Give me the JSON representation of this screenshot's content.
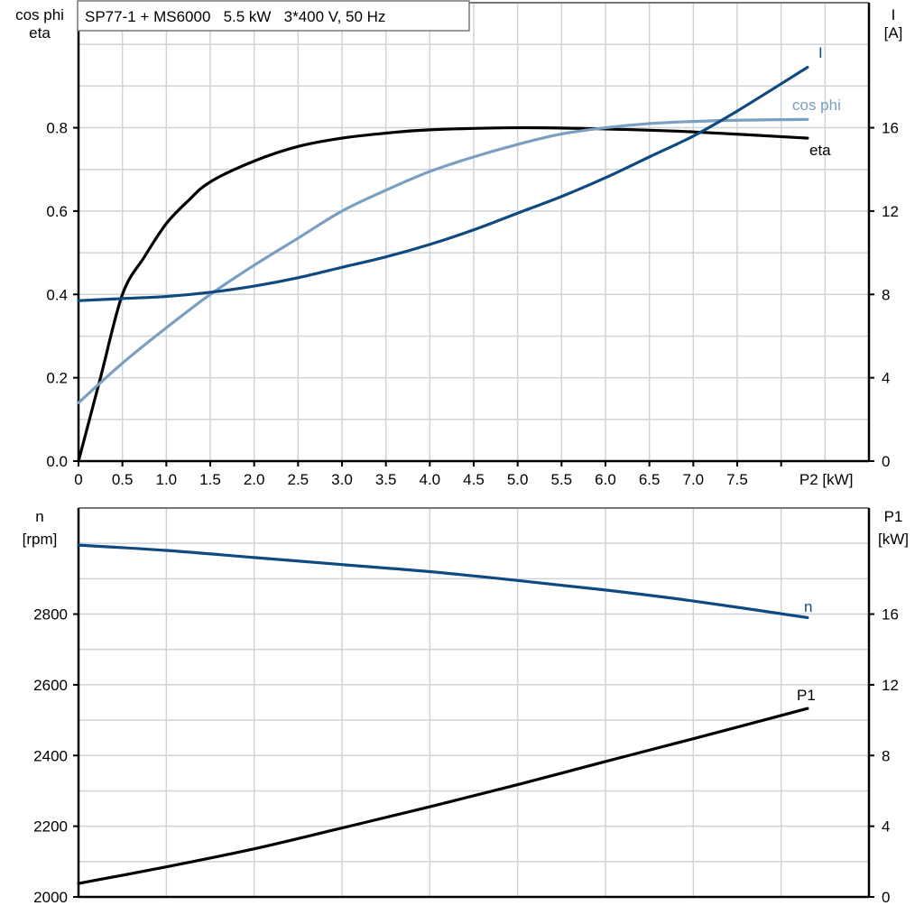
{
  "chart_data": [
    {
      "type": "line",
      "title": "SP77-1 + MS6000   5.5 kW   3*400 V, 50 Hz",
      "xlabel": "P2 [kW]",
      "ylabel_left": [
        "cos phi",
        "eta"
      ],
      "ylabel_right": [
        "I",
        "[A]"
      ],
      "xlim": [
        0,
        9
      ],
      "ylim_left": [
        0,
        1.1
      ],
      "ylim_right": [
        0,
        22
      ],
      "x_ticks": [
        "0",
        "0.5",
        "1.0",
        "1.5",
        "2.0",
        "2.5",
        "3.0",
        "3.5",
        "4.0",
        "4.5",
        "5.0",
        "5.5",
        "6.0",
        "6.5",
        "7.0",
        "7.5"
      ],
      "x_tick_values": [
        0,
        0.5,
        1,
        1.5,
        2,
        2.5,
        3,
        3.5,
        4,
        4.5,
        5,
        5.5,
        6,
        6.5,
        7,
        7.5
      ],
      "y_ticks_left": [
        "0.0",
        "0.2",
        "0.4",
        "0.6",
        "0.8"
      ],
      "y_tick_values_left": [
        0,
        0.2,
        0.4,
        0.6,
        0.8
      ],
      "y_ticks_right": [
        "0",
        "4",
        "8",
        "12",
        "16"
      ],
      "y_tick_values_right": [
        0,
        4,
        8,
        12,
        16
      ],
      "grid": true,
      "series": [
        {
          "name": "eta",
          "axis": "left",
          "color": "#000000",
          "x": [
            0,
            0.25,
            0.5,
            0.75,
            1,
            1.25,
            1.5,
            2,
            2.5,
            3,
            3.5,
            4,
            5,
            6,
            7,
            8.3
          ],
          "y": [
            0,
            0.2,
            0.4,
            0.49,
            0.57,
            0.625,
            0.67,
            0.72,
            0.755,
            0.775,
            0.787,
            0.795,
            0.8,
            0.797,
            0.79,
            0.775
          ]
        },
        {
          "name": "cos phi",
          "axis": "left",
          "color": "#7a9fc0",
          "x": [
            0,
            0.5,
            1,
            1.5,
            2,
            2.5,
            3,
            3.5,
            4,
            4.5,
            5,
            5.5,
            6,
            6.5,
            7,
            7.5,
            8.3
          ],
          "y": [
            0.14,
            0.235,
            0.32,
            0.4,
            0.47,
            0.535,
            0.6,
            0.65,
            0.695,
            0.73,
            0.76,
            0.785,
            0.8,
            0.81,
            0.815,
            0.818,
            0.82
          ]
        },
        {
          "name": "I",
          "axis": "right",
          "color": "#0e4a80",
          "x": [
            0,
            0.5,
            1,
            1.5,
            2,
            2.5,
            3,
            3.5,
            4,
            4.5,
            5,
            5.5,
            6,
            6.5,
            7,
            7.5,
            8.3
          ],
          "y": [
            7.7,
            7.8,
            7.9,
            8.1,
            8.4,
            8.8,
            9.3,
            9.8,
            10.4,
            11.1,
            11.9,
            12.7,
            13.6,
            14.6,
            15.6,
            16.8,
            18.9
          ]
        }
      ]
    },
    {
      "type": "line",
      "xlim": [
        0,
        9
      ],
      "ylabel_left": [
        "n",
        "[rpm]"
      ],
      "ylabel_right": [
        "P1",
        "[kW]"
      ],
      "ylim_left": [
        2000,
        3100
      ],
      "ylim_right": [
        0,
        22
      ],
      "y_ticks_left": [
        "2000",
        "2200",
        "2400",
        "2600",
        "2800"
      ],
      "y_tick_values_left": [
        2000,
        2200,
        2400,
        2600,
        2800
      ],
      "y_ticks_right": [
        "0",
        "4",
        "8",
        "12",
        "16"
      ],
      "y_tick_values_right": [
        0,
        4,
        8,
        12,
        16
      ],
      "grid": true,
      "series": [
        {
          "name": "n",
          "axis": "left",
          "color": "#0e4a80",
          "x": [
            0,
            1,
            2,
            3,
            4,
            5,
            6,
            7,
            8.3
          ],
          "y": [
            2995,
            2980,
            2960,
            2940,
            2920,
            2895,
            2868,
            2837,
            2790
          ]
        },
        {
          "name": "P1",
          "axis": "right",
          "color": "#000000",
          "x": [
            0,
            1,
            2,
            3,
            4,
            5,
            6,
            7,
            8.3
          ],
          "y": [
            0.76,
            1.7,
            2.72,
            3.9,
            5.1,
            6.35,
            7.66,
            8.95,
            10.66
          ]
        }
      ]
    }
  ]
}
